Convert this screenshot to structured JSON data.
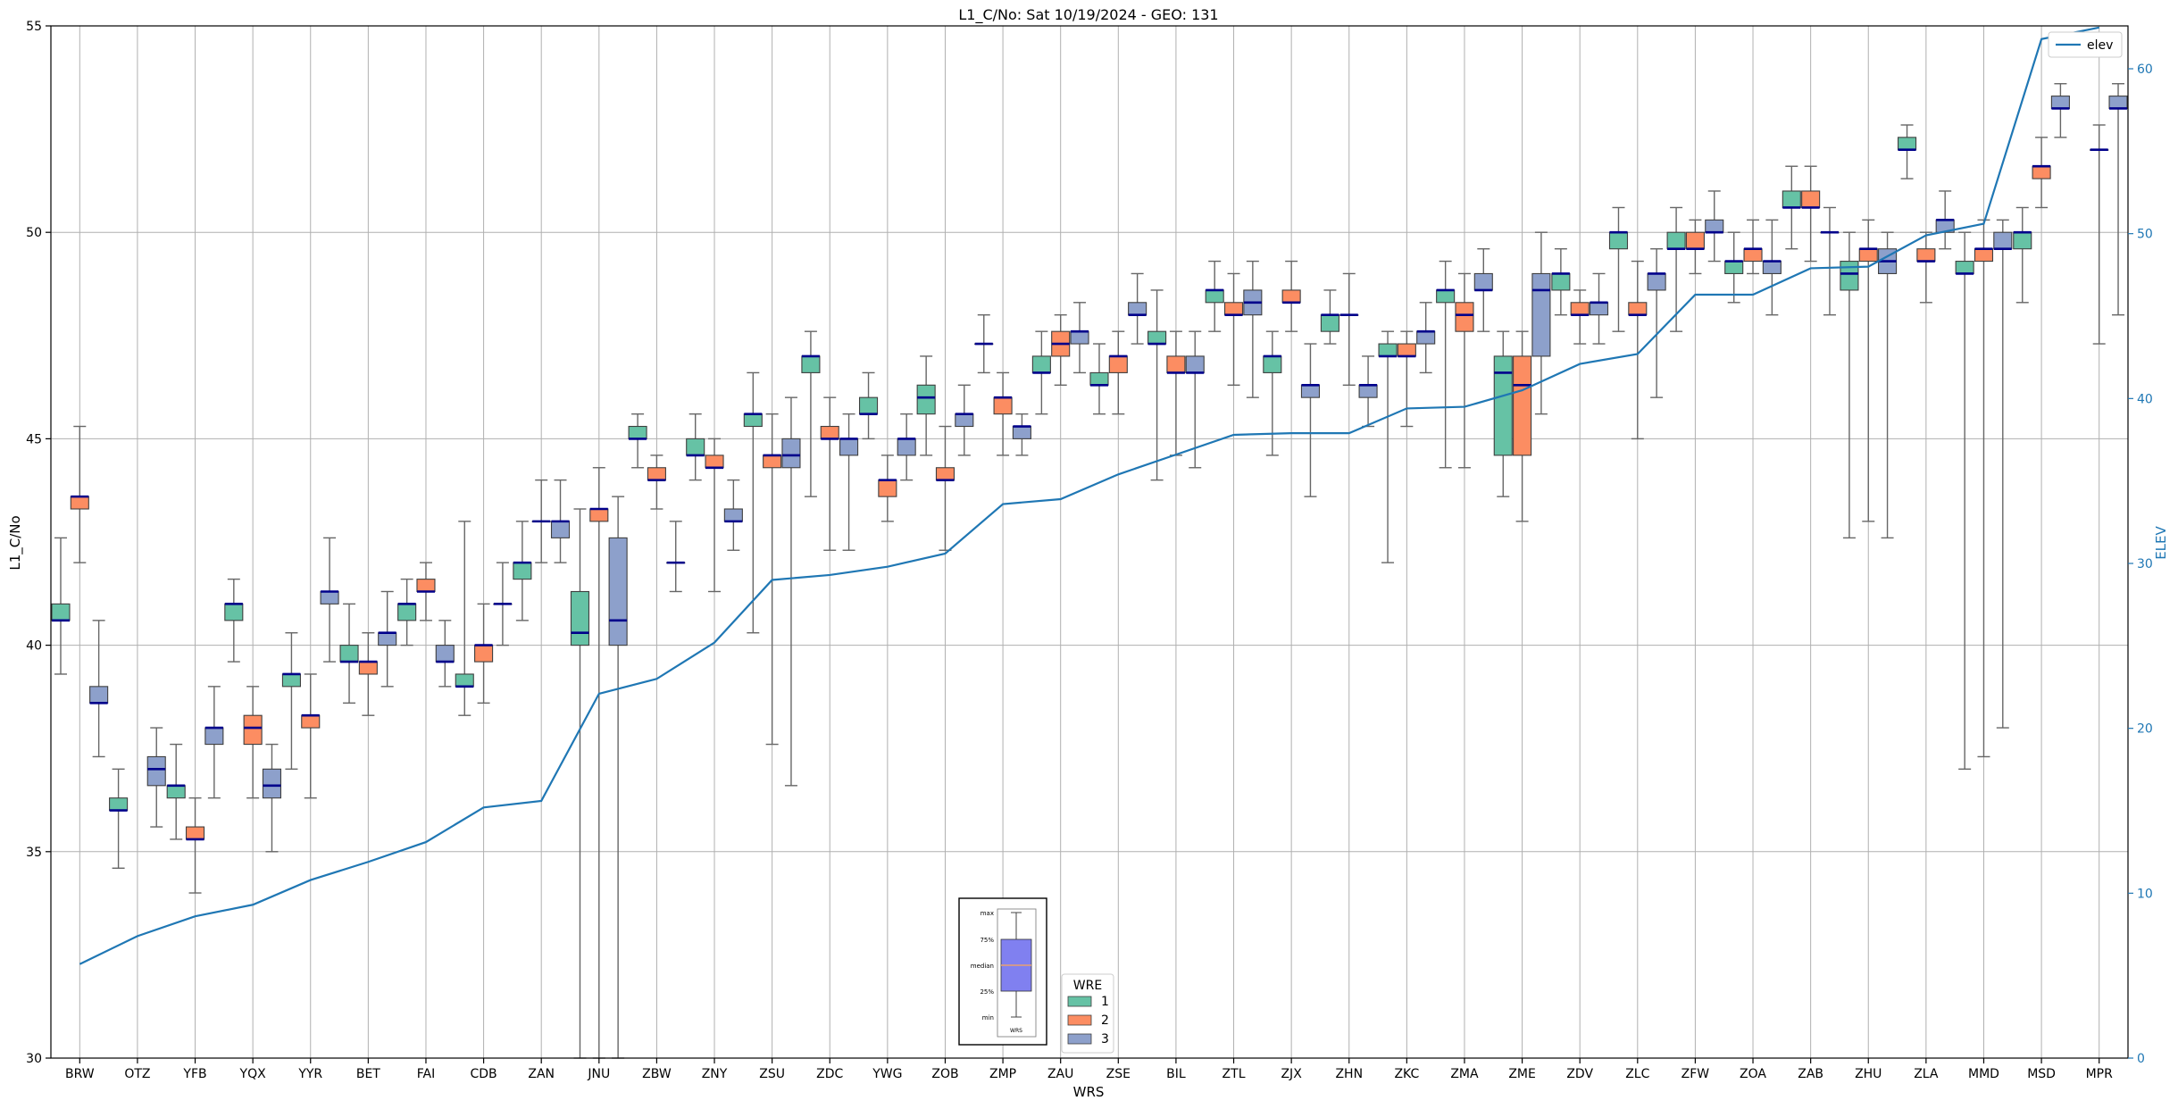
{
  "chart_data": {
    "type": "box",
    "title": "L1_C/No: Sat 10/19/2024 - GEO: 131",
    "xlabel": "WRS",
    "ylabel": "L1_C/No",
    "y2label": "ELEV",
    "ylim": [
      30,
      55
    ],
    "y2lim": [
      0,
      62.6
    ],
    "yticks": [
      30,
      35,
      40,
      45,
      50,
      55
    ],
    "y2ticks": [
      0,
      10,
      20,
      30,
      40,
      50,
      60
    ],
    "grid": true,
    "categories": [
      "BRW",
      "OTZ",
      "YFB",
      "YQX",
      "YYR",
      "BET",
      "FAI",
      "CDB",
      "ZAN",
      "JNU",
      "ZBW",
      "ZNY",
      "ZSU",
      "ZDC",
      "YWG",
      "ZOB",
      "ZMP",
      "ZAU",
      "ZSE",
      "BIL",
      "ZTL",
      "ZJX",
      "ZHN",
      "ZKC",
      "ZMA",
      "ZME",
      "ZDV",
      "ZLC",
      "ZFW",
      "ZOA",
      "ZAB",
      "ZHU",
      "ZLA",
      "MMD",
      "MSD",
      "MPR"
    ],
    "wre_legend": {
      "title": "WRE",
      "items": [
        "1",
        "2",
        "3"
      ]
    },
    "elev_legend": "elev",
    "colors": {
      "wre1": "#66c2a5",
      "wre2": "#fc8d62",
      "wre3": "#8da0cb",
      "median": "#00008b",
      "elev": "#1f77b4",
      "whisker": "#666666"
    },
    "box_series": [
      {
        "cat": "BRW",
        "wre": 1,
        "min": 39.3,
        "q1": 40.6,
        "med": 40.6,
        "q3": 41.0,
        "max": 42.6
      },
      {
        "cat": "BRW",
        "wre": 2,
        "min": 42.0,
        "q1": 43.3,
        "med": 43.6,
        "q3": 43.6,
        "max": 45.3
      },
      {
        "cat": "BRW",
        "wre": 3,
        "min": 37.3,
        "q1": 38.6,
        "med": 38.6,
        "q3": 39.0,
        "max": 40.6
      },
      {
        "cat": "OTZ",
        "wre": 1,
        "min": 34.6,
        "q1": 36.0,
        "med": 36.0,
        "q3": 36.3,
        "max": 37.0
      },
      {
        "cat": "OTZ",
        "wre": 3,
        "min": 35.6,
        "q1": 36.6,
        "med": 37.0,
        "q3": 37.3,
        "max": 38.0
      },
      {
        "cat": "YFB",
        "wre": 1,
        "min": 35.3,
        "q1": 36.3,
        "med": 36.6,
        "q3": 36.6,
        "max": 37.6
      },
      {
        "cat": "YFB",
        "wre": 2,
        "min": 34.0,
        "q1": 35.3,
        "med": 35.3,
        "q3": 35.6,
        "max": 36.3
      },
      {
        "cat": "YFB",
        "wre": 3,
        "min": 36.3,
        "q1": 37.6,
        "med": 38.0,
        "q3": 38.0,
        "max": 39.0
      },
      {
        "cat": "YQX",
        "wre": 1,
        "min": 39.6,
        "q1": 40.6,
        "med": 41.0,
        "q3": 41.0,
        "max": 41.6
      },
      {
        "cat": "YQX",
        "wre": 2,
        "min": 36.3,
        "q1": 37.6,
        "med": 38.0,
        "q3": 38.3,
        "max": 39.0
      },
      {
        "cat": "YQX",
        "wre": 3,
        "min": 35.0,
        "q1": 36.3,
        "med": 36.6,
        "q3": 37.0,
        "max": 37.6
      },
      {
        "cat": "YYR",
        "wre": 1,
        "min": 37.0,
        "q1": 39.0,
        "med": 39.3,
        "q3": 39.3,
        "max": 40.3
      },
      {
        "cat": "YYR",
        "wre": 2,
        "min": 36.3,
        "q1": 38.0,
        "med": 38.3,
        "q3": 38.3,
        "max": 39.3
      },
      {
        "cat": "YYR",
        "wre": 3,
        "min": 39.6,
        "q1": 41.0,
        "med": 41.3,
        "q3": 41.3,
        "max": 42.6
      },
      {
        "cat": "BET",
        "wre": 1,
        "min": 38.6,
        "q1": 39.6,
        "med": 39.6,
        "q3": 40.0,
        "max": 41.0
      },
      {
        "cat": "BET",
        "wre": 2,
        "min": 38.3,
        "q1": 39.3,
        "med": 39.6,
        "q3": 39.6,
        "max": 40.3
      },
      {
        "cat": "BET",
        "wre": 3,
        "min": 39.0,
        "q1": 40.0,
        "med": 40.3,
        "q3": 40.3,
        "max": 41.3
      },
      {
        "cat": "FAI",
        "wre": 1,
        "min": 40.0,
        "q1": 40.6,
        "med": 41.0,
        "q3": 41.0,
        "max": 41.6
      },
      {
        "cat": "FAI",
        "wre": 2,
        "min": 40.6,
        "q1": 41.3,
        "med": 41.3,
        "q3": 41.6,
        "max": 42.0
      },
      {
        "cat": "FAI",
        "wre": 3,
        "min": 39.0,
        "q1": 39.6,
        "med": 39.6,
        "q3": 40.0,
        "max": 40.6
      },
      {
        "cat": "CDB",
        "wre": 1,
        "min": 38.3,
        "q1": 39.0,
        "med": 39.0,
        "q3": 39.3,
        "max": 43.0
      },
      {
        "cat": "CDB",
        "wre": 2,
        "min": 38.6,
        "q1": 39.6,
        "med": 40.0,
        "q3": 40.0,
        "max": 41.0
      },
      {
        "cat": "CDB",
        "wre": 3,
        "min": 40.0,
        "q1": 41.0,
        "med": 41.0,
        "q3": 41.0,
        "max": 42.0
      },
      {
        "cat": "ZAN",
        "wre": 1,
        "min": 40.6,
        "q1": 41.6,
        "med": 42.0,
        "q3": 42.0,
        "max": 43.0
      },
      {
        "cat": "ZAN",
        "wre": 2,
        "min": 42.0,
        "q1": 43.0,
        "med": 43.0,
        "q3": 43.0,
        "max": 44.0
      },
      {
        "cat": "ZAN",
        "wre": 3,
        "min": 42.0,
        "q1": 42.6,
        "med": 43.0,
        "q3": 43.0,
        "max": 44.0
      },
      {
        "cat": "JNU",
        "wre": 1,
        "min": 30.0,
        "q1": 40.0,
        "med": 40.3,
        "q3": 41.3,
        "max": 43.3
      },
      {
        "cat": "JNU",
        "wre": 2,
        "min": 30.0,
        "q1": 43.0,
        "med": 43.3,
        "q3": 43.3,
        "max": 44.3
      },
      {
        "cat": "JNU",
        "wre": 3,
        "min": 30.0,
        "q1": 40.0,
        "med": 40.6,
        "q3": 42.6,
        "max": 43.6
      },
      {
        "cat": "ZBW",
        "wre": 1,
        "min": 44.3,
        "q1": 45.0,
        "med": 45.0,
        "q3": 45.3,
        "max": 45.6
      },
      {
        "cat": "ZBW",
        "wre": 2,
        "min": 43.3,
        "q1": 44.0,
        "med": 44.0,
        "q3": 44.3,
        "max": 44.6
      },
      {
        "cat": "ZBW",
        "wre": 3,
        "min": 41.3,
        "q1": 42.0,
        "med": 42.0,
        "q3": 42.0,
        "max": 43.0
      },
      {
        "cat": "ZNY",
        "wre": 1,
        "min": 44.0,
        "q1": 44.6,
        "med": 44.6,
        "q3": 45.0,
        "max": 45.6
      },
      {
        "cat": "ZNY",
        "wre": 2,
        "min": 41.3,
        "q1": 44.3,
        "med": 44.3,
        "q3": 44.6,
        "max": 45.0
      },
      {
        "cat": "ZNY",
        "wre": 3,
        "min": 42.3,
        "q1": 43.0,
        "med": 43.0,
        "q3": 43.3,
        "max": 44.0
      },
      {
        "cat": "ZSU",
        "wre": 1,
        "min": 40.3,
        "q1": 45.3,
        "med": 45.6,
        "q3": 45.6,
        "max": 46.6
      },
      {
        "cat": "ZSU",
        "wre": 2,
        "min": 37.6,
        "q1": 44.3,
        "med": 44.6,
        "q3": 44.6,
        "max": 45.6
      },
      {
        "cat": "ZSU",
        "wre": 3,
        "min": 36.6,
        "q1": 44.3,
        "med": 44.6,
        "q3": 45.0,
        "max": 46.0
      },
      {
        "cat": "ZDC",
        "wre": 1,
        "min": 43.6,
        "q1": 46.6,
        "med": 47.0,
        "q3": 47.0,
        "max": 47.6
      },
      {
        "cat": "ZDC",
        "wre": 2,
        "min": 42.3,
        "q1": 45.0,
        "med": 45.0,
        "q3": 45.3,
        "max": 46.0
      },
      {
        "cat": "ZDC",
        "wre": 3,
        "min": 42.3,
        "q1": 44.6,
        "med": 45.0,
        "q3": 45.0,
        "max": 45.6
      },
      {
        "cat": "YWG",
        "wre": 1,
        "min": 45.0,
        "q1": 45.6,
        "med": 45.6,
        "q3": 46.0,
        "max": 46.6
      },
      {
        "cat": "YWG",
        "wre": 2,
        "min": 43.0,
        "q1": 43.6,
        "med": 44.0,
        "q3": 44.0,
        "max": 44.6
      },
      {
        "cat": "YWG",
        "wre": 3,
        "min": 44.0,
        "q1": 44.6,
        "med": 45.0,
        "q3": 45.0,
        "max": 45.6
      },
      {
        "cat": "ZOB",
        "wre": 1,
        "min": 44.6,
        "q1": 45.6,
        "med": 46.0,
        "q3": 46.3,
        "max": 47.0
      },
      {
        "cat": "ZOB",
        "wre": 2,
        "min": 42.3,
        "q1": 44.0,
        "med": 44.0,
        "q3": 44.3,
        "max": 45.3
      },
      {
        "cat": "ZOB",
        "wre": 3,
        "min": 44.6,
        "q1": 45.3,
        "med": 45.6,
        "q3": 45.6,
        "max": 46.3
      },
      {
        "cat": "ZMP",
        "wre": 1,
        "min": 46.6,
        "q1": 47.3,
        "med": 47.3,
        "q3": 47.3,
        "max": 48.0
      },
      {
        "cat": "ZMP",
        "wre": 2,
        "min": 44.6,
        "q1": 45.6,
        "med": 46.0,
        "q3": 46.0,
        "max": 46.6
      },
      {
        "cat": "ZMP",
        "wre": 3,
        "min": 44.6,
        "q1": 45.0,
        "med": 45.3,
        "q3": 45.3,
        "max": 45.6
      },
      {
        "cat": "ZAU",
        "wre": 1,
        "min": 45.6,
        "q1": 46.6,
        "med": 46.6,
        "q3": 47.0,
        "max": 47.6
      },
      {
        "cat": "ZAU",
        "wre": 2,
        "min": 46.3,
        "q1": 47.0,
        "med": 47.3,
        "q3": 47.6,
        "max": 48.0
      },
      {
        "cat": "ZAU",
        "wre": 3,
        "min": 46.6,
        "q1": 47.3,
        "med": 47.6,
        "q3": 47.6,
        "max": 48.3
      },
      {
        "cat": "ZSE",
        "wre": 1,
        "min": 45.6,
        "q1": 46.3,
        "med": 46.3,
        "q3": 46.6,
        "max": 47.3
      },
      {
        "cat": "ZSE",
        "wre": 2,
        "min": 45.6,
        "q1": 46.6,
        "med": 47.0,
        "q3": 47.0,
        "max": 47.6
      },
      {
        "cat": "ZSE",
        "wre": 3,
        "min": 47.3,
        "q1": 48.0,
        "med": 48.0,
        "q3": 48.3,
        "max": 49.0
      },
      {
        "cat": "BIL",
        "wre": 1,
        "min": 44.0,
        "q1": 47.3,
        "med": 47.3,
        "q3": 47.6,
        "max": 48.6
      },
      {
        "cat": "BIL",
        "wre": 2,
        "min": 44.6,
        "q1": 46.6,
        "med": 46.6,
        "q3": 47.0,
        "max": 47.6
      },
      {
        "cat": "BIL",
        "wre": 3,
        "min": 44.3,
        "q1": 46.6,
        "med": 46.6,
        "q3": 47.0,
        "max": 47.6
      },
      {
        "cat": "ZTL",
        "wre": 1,
        "min": 47.6,
        "q1": 48.3,
        "med": 48.6,
        "q3": 48.6,
        "max": 49.3
      },
      {
        "cat": "ZTL",
        "wre": 2,
        "min": 46.3,
        "q1": 48.0,
        "med": 48.0,
        "q3": 48.3,
        "max": 49.0
      },
      {
        "cat": "ZTL",
        "wre": 3,
        "min": 46.0,
        "q1": 48.0,
        "med": 48.3,
        "q3": 48.6,
        "max": 49.3
      },
      {
        "cat": "ZJX",
        "wre": 1,
        "min": 44.6,
        "q1": 46.6,
        "med": 47.0,
        "q3": 47.0,
        "max": 47.6
      },
      {
        "cat": "ZJX",
        "wre": 2,
        "min": 47.6,
        "q1": 48.3,
        "med": 48.3,
        "q3": 48.6,
        "max": 49.3
      },
      {
        "cat": "ZJX",
        "wre": 3,
        "min": 43.6,
        "q1": 46.0,
        "med": 46.3,
        "q3": 46.3,
        "max": 47.3
      },
      {
        "cat": "ZHN",
        "wre": 1,
        "min": 47.3,
        "q1": 47.6,
        "med": 48.0,
        "q3": 48.0,
        "max": 48.6
      },
      {
        "cat": "ZHN",
        "wre": 2,
        "min": 46.3,
        "q1": 48.0,
        "med": 48.0,
        "q3": 48.0,
        "max": 49.0
      },
      {
        "cat": "ZHN",
        "wre": 3,
        "min": 45.3,
        "q1": 46.0,
        "med": 46.3,
        "q3": 46.3,
        "max": 47.0
      },
      {
        "cat": "ZKC",
        "wre": 1,
        "min": 42.0,
        "q1": 47.0,
        "med": 47.0,
        "q3": 47.3,
        "max": 47.6
      },
      {
        "cat": "ZKC",
        "wre": 2,
        "min": 45.3,
        "q1": 47.0,
        "med": 47.0,
        "q3": 47.3,
        "max": 47.6
      },
      {
        "cat": "ZKC",
        "wre": 3,
        "min": 46.6,
        "q1": 47.3,
        "med": 47.6,
        "q3": 47.6,
        "max": 48.3
      },
      {
        "cat": "ZMA",
        "wre": 1,
        "min": 44.3,
        "q1": 48.3,
        "med": 48.6,
        "q3": 48.6,
        "max": 49.3
      },
      {
        "cat": "ZMA",
        "wre": 2,
        "min": 44.3,
        "q1": 47.6,
        "med": 48.0,
        "q3": 48.3,
        "max": 49.0
      },
      {
        "cat": "ZMA",
        "wre": 3,
        "min": 47.6,
        "q1": 48.6,
        "med": 48.6,
        "q3": 49.0,
        "max": 49.6
      },
      {
        "cat": "ZME",
        "wre": 1,
        "min": 43.6,
        "q1": 44.6,
        "med": 46.6,
        "q3": 47.0,
        "max": 47.6
      },
      {
        "cat": "ZME",
        "wre": 2,
        "min": 43.0,
        "q1": 44.6,
        "med": 46.3,
        "q3": 47.0,
        "max": 47.6
      },
      {
        "cat": "ZME",
        "wre": 3,
        "min": 45.6,
        "q1": 47.0,
        "med": 48.6,
        "q3": 49.0,
        "max": 50.0
      },
      {
        "cat": "ZDV",
        "wre": 1,
        "min": 48.0,
        "q1": 48.6,
        "med": 49.0,
        "q3": 49.0,
        "max": 49.6
      },
      {
        "cat": "ZDV",
        "wre": 2,
        "min": 47.3,
        "q1": 48.0,
        "med": 48.0,
        "q3": 48.3,
        "max": 48.6
      },
      {
        "cat": "ZDV",
        "wre": 3,
        "min": 47.3,
        "q1": 48.0,
        "med": 48.3,
        "q3": 48.3,
        "max": 49.0
      },
      {
        "cat": "ZLC",
        "wre": 1,
        "min": 47.6,
        "q1": 49.6,
        "med": 50.0,
        "q3": 50.0,
        "max": 50.6
      },
      {
        "cat": "ZLC",
        "wre": 2,
        "min": 45.0,
        "q1": 48.0,
        "med": 48.0,
        "q3": 48.3,
        "max": 49.3
      },
      {
        "cat": "ZLC",
        "wre": 3,
        "min": 46.0,
        "q1": 48.6,
        "med": 49.0,
        "q3": 49.0,
        "max": 49.6
      },
      {
        "cat": "ZFW",
        "wre": 1,
        "min": 47.6,
        "q1": 49.6,
        "med": 49.6,
        "q3": 50.0,
        "max": 50.6
      },
      {
        "cat": "ZFW",
        "wre": 2,
        "min": 49.0,
        "q1": 49.6,
        "med": 49.6,
        "q3": 50.0,
        "max": 50.3
      },
      {
        "cat": "ZFW",
        "wre": 3,
        "min": 49.3,
        "q1": 50.0,
        "med": 50.0,
        "q3": 50.3,
        "max": 51.0
      },
      {
        "cat": "ZOA",
        "wre": 1,
        "min": 48.3,
        "q1": 49.0,
        "med": 49.3,
        "q3": 49.3,
        "max": 50.0
      },
      {
        "cat": "ZOA",
        "wre": 2,
        "min": 49.0,
        "q1": 49.3,
        "med": 49.6,
        "q3": 49.6,
        "max": 50.3
      },
      {
        "cat": "ZOA",
        "wre": 3,
        "min": 48.0,
        "q1": 49.0,
        "med": 49.3,
        "q3": 49.3,
        "max": 50.3
      },
      {
        "cat": "ZAB",
        "wre": 1,
        "min": 49.6,
        "q1": 50.6,
        "med": 50.6,
        "q3": 51.0,
        "max": 51.6
      },
      {
        "cat": "ZAB",
        "wre": 2,
        "min": 49.3,
        "q1": 50.6,
        "med": 50.6,
        "q3": 51.0,
        "max": 51.6
      },
      {
        "cat": "ZAB",
        "wre": 3,
        "min": 48.0,
        "q1": 50.0,
        "med": 50.0,
        "q3": 50.0,
        "max": 50.6
      },
      {
        "cat": "ZHU",
        "wre": 1,
        "min": 42.6,
        "q1": 48.6,
        "med": 49.0,
        "q3": 49.3,
        "max": 50.0
      },
      {
        "cat": "ZHU",
        "wre": 2,
        "min": 43.0,
        "q1": 49.3,
        "med": 49.6,
        "q3": 49.6,
        "max": 50.3
      },
      {
        "cat": "ZHU",
        "wre": 3,
        "min": 42.6,
        "q1": 49.0,
        "med": 49.3,
        "q3": 49.6,
        "max": 50.0
      },
      {
        "cat": "ZLA",
        "wre": 1,
        "min": 51.3,
        "q1": 52.0,
        "med": 52.0,
        "q3": 52.3,
        "max": 52.6
      },
      {
        "cat": "ZLA",
        "wre": 2,
        "min": 48.3,
        "q1": 49.3,
        "med": 49.3,
        "q3": 49.6,
        "max": 50.0
      },
      {
        "cat": "ZLA",
        "wre": 3,
        "min": 49.6,
        "q1": 50.0,
        "med": 50.3,
        "q3": 50.3,
        "max": 51.0
      },
      {
        "cat": "MMD",
        "wre": 1,
        "min": 37.0,
        "q1": 49.0,
        "med": 49.0,
        "q3": 49.3,
        "max": 50.0
      },
      {
        "cat": "MMD",
        "wre": 2,
        "min": 37.3,
        "q1": 49.3,
        "med": 49.6,
        "q3": 49.6,
        "max": 50.3
      },
      {
        "cat": "MMD",
        "wre": 3,
        "min": 38.0,
        "q1": 49.6,
        "med": 49.6,
        "q3": 50.0,
        "max": 50.3
      },
      {
        "cat": "MSD",
        "wre": 1,
        "min": 48.3,
        "q1": 49.6,
        "med": 50.0,
        "q3": 50.0,
        "max": 50.6
      },
      {
        "cat": "MSD",
        "wre": 2,
        "min": 50.6,
        "q1": 51.3,
        "med": 51.6,
        "q3": 51.6,
        "max": 52.3
      },
      {
        "cat": "MSD",
        "wre": 3,
        "min": 52.3,
        "q1": 53.0,
        "med": 53.0,
        "q3": 53.3,
        "max": 53.6
      },
      {
        "cat": "MPR",
        "wre": 2,
        "min": 47.3,
        "q1": 52.0,
        "med": 52.0,
        "q3": 52.0,
        "max": 52.6
      },
      {
        "cat": "MPR",
        "wre": 3,
        "min": 48.0,
        "q1": 53.0,
        "med": 53.0,
        "q3": 53.3,
        "max": 53.6
      }
    ],
    "elev_series": {
      "name": "elev",
      "x": [
        "BRW",
        "OTZ",
        "YFB",
        "YQX",
        "YYR",
        "BET",
        "FAI",
        "CDB",
        "ZAN",
        "JNU",
        "ZBW",
        "ZNY",
        "ZSU",
        "ZDC",
        "YWG",
        "ZOB",
        "ZMP",
        "ZAU",
        "ZSE",
        "BIL",
        "ZTL",
        "ZJX",
        "ZHN",
        "ZKC",
        "ZMA",
        "ZME",
        "ZDV",
        "ZLC",
        "ZFW",
        "ZOA",
        "ZAB",
        "ZHU",
        "ZLA",
        "MMD",
        "MSD",
        "MPR"
      ],
      "values": [
        5.7,
        7.4,
        8.6,
        9.3,
        10.8,
        11.9,
        13.1,
        15.2,
        15.6,
        22.1,
        23.0,
        25.2,
        29.0,
        29.3,
        29.8,
        30.6,
        33.6,
        33.9,
        35.4,
        36.6,
        37.8,
        37.9,
        37.9,
        39.4,
        39.5,
        40.5,
        42.1,
        42.7,
        46.3,
        46.3,
        47.9,
        48.0,
        49.9,
        50.6,
        61.8,
        62.5
      ]
    },
    "inset_legend": {
      "labels": [
        "max",
        "75%",
        "median",
        "25%",
        "min"
      ],
      "caption": "WRS",
      "box_color": "#8080f0",
      "median_color": "#e8a070"
    }
  }
}
